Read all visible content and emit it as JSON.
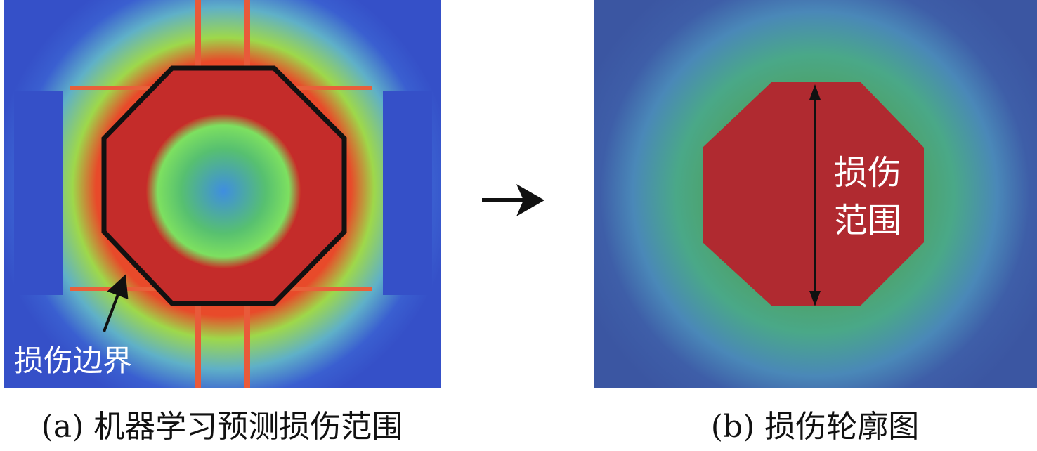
{
  "panels": [
    {
      "caption": "(a) 机器学习预测损伤范围",
      "label": "损伤边界"
    },
    {
      "caption": "(b) 损伤轮廓图",
      "label_lines": [
        "损伤",
        "范围"
      ]
    }
  ]
}
